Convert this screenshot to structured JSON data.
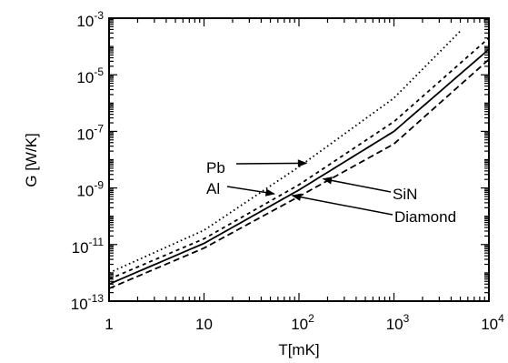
{
  "chart_data": {
    "type": "line",
    "xlabel": "T[mK]",
    "ylabel": "G [W/K]",
    "xscale": "log",
    "yscale": "log",
    "xlim": [
      1,
      10000
    ],
    "ylim": [
      1e-13,
      0.001
    ],
    "grid": false,
    "x_ticks": [
      {
        "base": "1",
        "exp": ""
      },
      {
        "base": "10",
        "exp": ""
      },
      {
        "base": "10",
        "exp": "2"
      },
      {
        "base": "10",
        "exp": "3"
      },
      {
        "base": "10",
        "exp": "4"
      }
    ],
    "y_ticks": [
      {
        "base": "10",
        "exp": "-13"
      },
      {
        "base": "10",
        "exp": "-11"
      },
      {
        "base": "10",
        "exp": "-9"
      },
      {
        "base": "10",
        "exp": "-7"
      },
      {
        "base": "10",
        "exp": "-5"
      },
      {
        "base": "10",
        "exp": "-3"
      }
    ],
    "series": [
      {
        "name": "Pb",
        "style": "dotted",
        "points": [
          [
            1,
            1e-12
          ],
          [
            10,
            3.2e-11
          ],
          [
            100,
            5.6e-09
          ],
          [
            1000,
            1.5e-06
          ],
          [
            5000,
            0.00035
          ]
        ]
      },
      {
        "name": "Al",
        "style": "short-dash",
        "points": [
          [
            1,
            6e-13
          ],
          [
            10,
            1.6e-11
          ],
          [
            100,
            1.3e-09
          ],
          [
            1000,
            2.2e-07
          ],
          [
            10000,
            0.0002
          ]
        ]
      },
      {
        "name": "SiN",
        "style": "solid",
        "points": [
          [
            1,
            4e-13
          ],
          [
            10,
            1.1e-11
          ],
          [
            100,
            8.5e-10
          ],
          [
            1000,
            1e-07
          ],
          [
            10000,
            8e-05
          ]
        ]
      },
      {
        "name": "Diamond",
        "style": "dashed",
        "points": [
          [
            1,
            2.8e-13
          ],
          [
            10,
            7.5e-12
          ],
          [
            100,
            5e-10
          ],
          [
            1000,
            3.6e-08
          ],
          [
            10000,
            3.5e-05
          ]
        ]
      }
    ],
    "annotations": [
      {
        "text": "Pb",
        "series": "Pb",
        "point": [
          120,
          7.5e-09
        ]
      },
      {
        "text": "Al",
        "series": "Al",
        "point": [
          55,
          6.2e-10
        ]
      },
      {
        "text": "SiN",
        "series": "SiN",
        "point": [
          180,
          2.1e-09
        ]
      },
      {
        "text": "Diamond",
        "series": "Diamond",
        "point": [
          85,
          5.4e-10
        ]
      }
    ]
  }
}
